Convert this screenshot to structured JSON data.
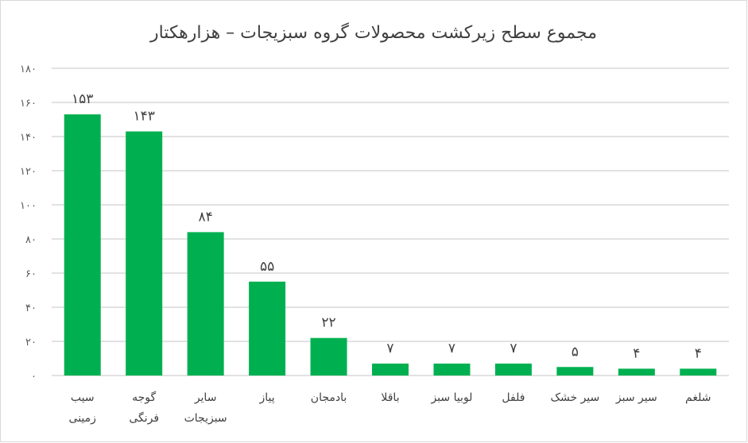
{
  "chart_data": {
    "type": "bar",
    "title": "مجموع  سطح زیرکشت محصولات گروه سبزیجات – هزارهکتار",
    "xlabel": "",
    "ylabel": "",
    "ylim": [
      0,
      180
    ],
    "yticks": [
      0,
      20,
      40,
      60,
      80,
      100,
      120,
      140,
      160,
      180
    ],
    "grid": true,
    "categories": [
      [
        "سیب",
        "زمینی"
      ],
      [
        "گوجه",
        "فرنگی"
      ],
      [
        "سایر",
        "سبزیجات"
      ],
      [
        "پیاز"
      ],
      [
        "بادمجان"
      ],
      [
        "باقلا"
      ],
      [
        "لوبیا سبز"
      ],
      [
        "فلفل"
      ],
      [
        "سیر خشک"
      ],
      [
        "سیر سبز"
      ],
      [
        "شلغم"
      ]
    ],
    "values": [
      153,
      143,
      84,
      55,
      22,
      7,
      7,
      7,
      5,
      4,
      4
    ],
    "bar_color": "#00B050",
    "grid_color": "#D9D9D9"
  }
}
